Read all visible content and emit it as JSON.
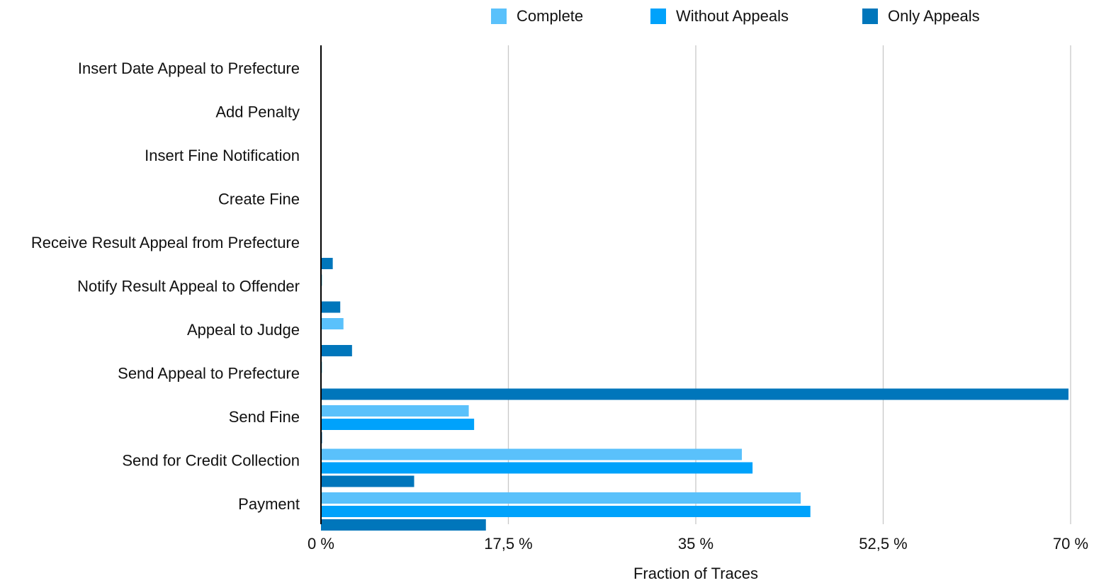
{
  "chart_data": {
    "type": "bar",
    "orientation": "horizontal",
    "categories": [
      "Insert Date Appeal to Prefecture",
      "Add Penalty",
      "Insert Fine Notification",
      "Create Fine",
      "Receive Result Appeal from Prefecture",
      "Notify Result Appeal to Offender",
      "Appeal to Judge",
      "Send Appeal to Prefecture",
      "Send Fine",
      "Send for Credit Collection",
      "Payment"
    ],
    "series": [
      {
        "name": "Complete",
        "color": "#5ac1fb",
        "values": [
          0,
          0,
          0,
          0,
          0,
          0.1,
          2.1,
          0.1,
          13.8,
          39.3,
          44.8
        ]
      },
      {
        "name": "Without Appeals",
        "color": "#00a2fb",
        "values": [
          0,
          0,
          0,
          0,
          0,
          0,
          0,
          0,
          14.3,
          40.3,
          45.7
        ]
      },
      {
        "name": "Only Appeals",
        "color": "#0076bb",
        "values": [
          0,
          0,
          0,
          0,
          1.1,
          1.8,
          2.9,
          69.8,
          0.1,
          8.7,
          15.4
        ]
      }
    ],
    "xlabel": "Fraction of Traces",
    "ylabel": "",
    "xlim": [
      0,
      70
    ],
    "xticks": [
      "0 %",
      "17,5 %",
      "35 %",
      "52,5 %",
      "70 %"
    ],
    "tick_values": [
      0,
      17.5,
      35,
      52.5,
      70
    ],
    "grid": "vertical",
    "legend_position": "top"
  }
}
